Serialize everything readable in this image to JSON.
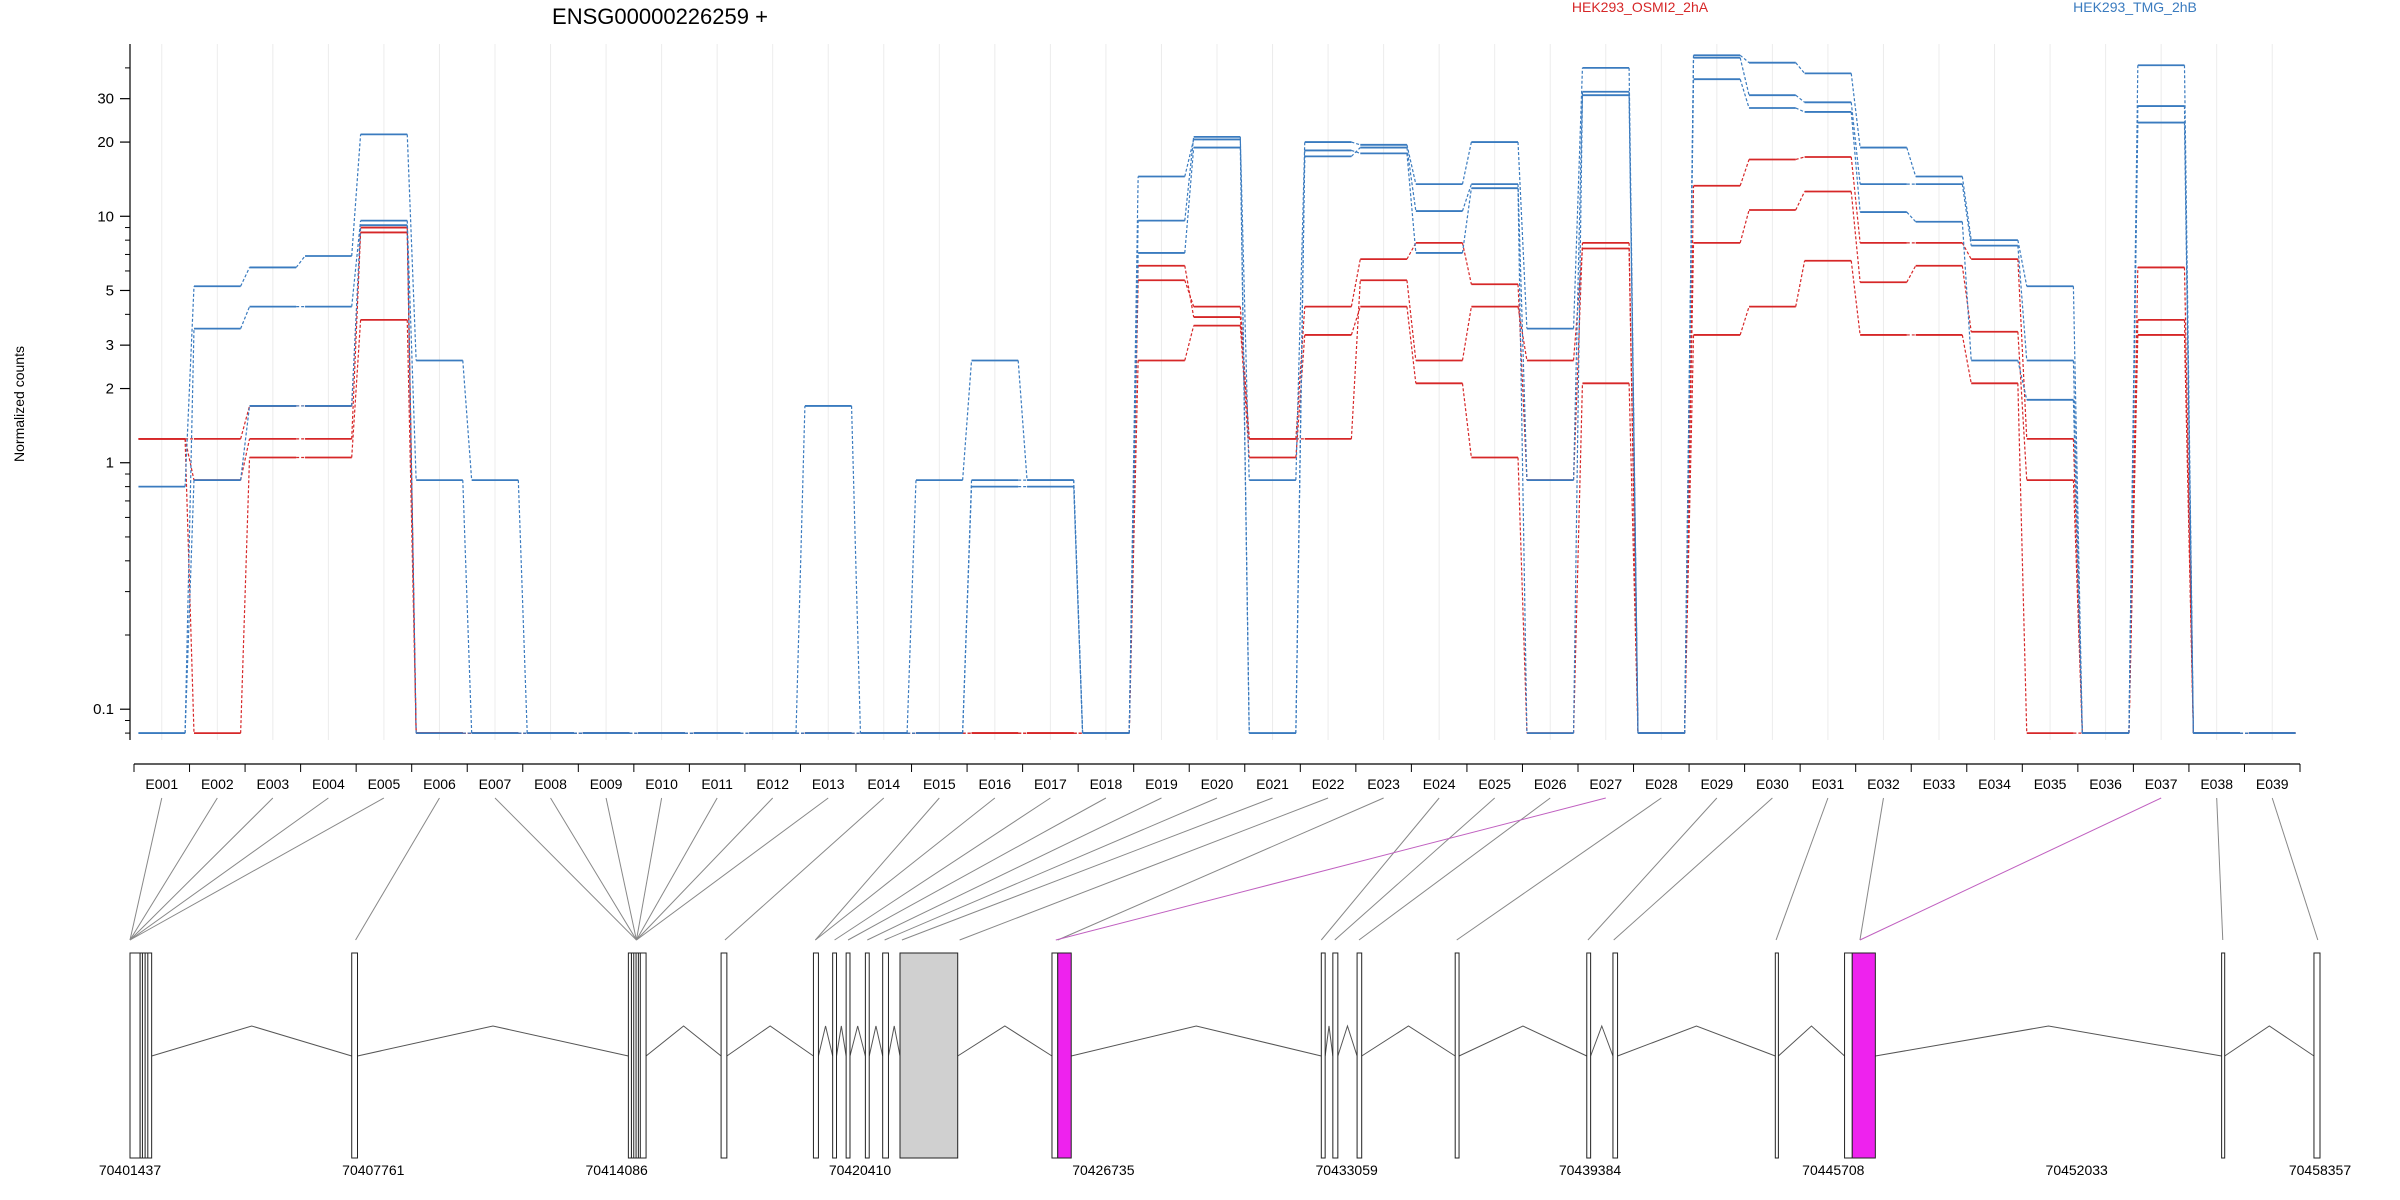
{
  "chart_data": {
    "type": "line",
    "title": "ENSG00000226259 +",
    "ylabel": "Normalized counts",
    "xlabel": "",
    "yscale": "log",
    "ylim": [
      0.075,
      50
    ],
    "yticks": [
      0.1,
      1,
      2,
      3,
      5,
      10,
      20,
      30
    ],
    "ytick_labels": [
      "0.1",
      "1",
      "2",
      "3",
      "5",
      "10",
      "20",
      "30"
    ],
    "grid": "vertical lines only",
    "legend": "top-right",
    "colors": {
      "HEK293_OSMI2_2hA": "#d62728",
      "HEK293_TMG_2hB": "#3a7bbf",
      "highlight": "#ee22ee"
    },
    "categories": [
      "E001",
      "E002",
      "E003",
      "E004",
      "E005",
      "E006",
      "E007",
      "E008",
      "E009",
      "E010",
      "E011",
      "E012",
      "E013",
      "E014",
      "E015",
      "E016",
      "E017",
      "E018",
      "E019",
      "E020",
      "E021",
      "E022",
      "E023",
      "E024",
      "E025",
      "E026",
      "E027",
      "E028",
      "E029",
      "E030",
      "E031",
      "E032",
      "E033",
      "E034",
      "E035",
      "E036",
      "E037",
      "E038",
      "E039"
    ],
    "series": [
      {
        "name": "HEK293_OSMI2_2hA",
        "group": "HEK293_OSMI2_2hA",
        "values": [
          1.25,
          0.08,
          1.05,
          1.05,
          3.8,
          0.08,
          0.08,
          0.08,
          0.08,
          0.08,
          0.08,
          0.08,
          0.08,
          0.08,
          0.08,
          0.08,
          0.08,
          0.08,
          2.6,
          3.6,
          1.05,
          3.3,
          4.3,
          2.1,
          1.05,
          0.08,
          2.1,
          0.08,
          3.3,
          4.3,
          6.6,
          3.3,
          3.3,
          2.1,
          0.08,
          0.08,
          3.3,
          0.08,
          0.08
        ]
      },
      {
        "name": "HEK293_OSMI2_2hA",
        "group": "HEK293_OSMI2_2hA",
        "values": [
          1.25,
          0.85,
          1.25,
          1.25,
          8.6,
          0.08,
          0.08,
          0.08,
          0.08,
          0.08,
          0.08,
          0.08,
          0.08,
          0.08,
          0.08,
          0.08,
          0.08,
          0.08,
          5.5,
          4.3,
          1.25,
          1.25,
          5.5,
          2.6,
          4.3,
          2.6,
          7.4,
          0.08,
          7.8,
          10.6,
          12.6,
          5.4,
          6.3,
          3.4,
          0.85,
          0.08,
          3.8,
          0.08,
          0.08
        ]
      },
      {
        "name": "HEK293_OSMI2_2hA",
        "group": "HEK293_OSMI2_2hA",
        "values": [
          1.25,
          1.25,
          1.7,
          1.7,
          9.0,
          0.08,
          0.08,
          0.08,
          0.08,
          0.08,
          0.08,
          0.08,
          0.08,
          0.08,
          0.08,
          0.08,
          0.08,
          0.08,
          6.3,
          3.9,
          1.25,
          4.3,
          6.7,
          7.8,
          5.3,
          0.85,
          7.8,
          0.08,
          13.3,
          17.0,
          17.4,
          7.8,
          7.8,
          6.7,
          1.25,
          0.08,
          6.2,
          0.08,
          0.08
        ]
      },
      {
        "name": "HEK293_TMG_2hB",
        "group": "HEK293_TMG_2hB",
        "values": [
          0.8,
          5.2,
          6.2,
          6.9,
          21.5,
          2.6,
          0.85,
          0.08,
          0.08,
          0.08,
          0.08,
          0.08,
          1.7,
          0.08,
          0.85,
          2.6,
          0.85,
          0.08,
          14.5,
          20.5,
          0.85,
          20.0,
          19.5,
          13.5,
          20.0,
          3.5,
          40.0,
          0.08,
          45.0,
          42.0,
          38.0,
          19.0,
          14.5,
          8.0,
          5.2,
          0.08,
          41.0,
          0.08,
          0.08
        ]
      },
      {
        "name": "HEK293_TMG_2hB",
        "group": "HEK293_TMG_2hB",
        "values": [
          0.08,
          3.5,
          4.3,
          4.3,
          9.6,
          0.85,
          0.08,
          0.08,
          0.08,
          0.08,
          0.08,
          0.08,
          0.08,
          0.08,
          0.08,
          0.85,
          0.85,
          0.08,
          9.6,
          21.0,
          0.08,
          17.5,
          19.0,
          10.5,
          13.5,
          0.85,
          32.0,
          0.08,
          44.0,
          31.0,
          29.0,
          13.5,
          13.5,
          7.6,
          2.6,
          0.08,
          28.0,
          0.08,
          0.08
        ]
      },
      {
        "name": "HEK293_TMG_2hB",
        "group": "HEK293_TMG_2hB",
        "values": [
          0.08,
          0.85,
          1.7,
          1.7,
          9.2,
          0.08,
          0.08,
          0.08,
          0.08,
          0.08,
          0.08,
          0.08,
          0.08,
          0.08,
          0.08,
          0.8,
          0.8,
          0.08,
          7.1,
          19.0,
          0.08,
          18.5,
          18.0,
          7.1,
          13.0,
          0.08,
          31.0,
          0.08,
          36.0,
          27.5,
          26.5,
          10.4,
          9.5,
          2.6,
          1.8,
          0.08,
          24.0,
          0.08,
          0.08
        ]
      }
    ],
    "legend_labels": [
      "HEK293_OSMI2_2hA",
      "HEK293_TMG_2hB"
    ],
    "coordinate_labels": [
      "70401437",
      "70407761",
      "70414086",
      "70420410",
      "70426735",
      "70433059",
      "70439384",
      "70445708",
      "70452033",
      "70458357"
    ],
    "highlighted_exons": [
      "E027",
      "E037"
    ]
  }
}
